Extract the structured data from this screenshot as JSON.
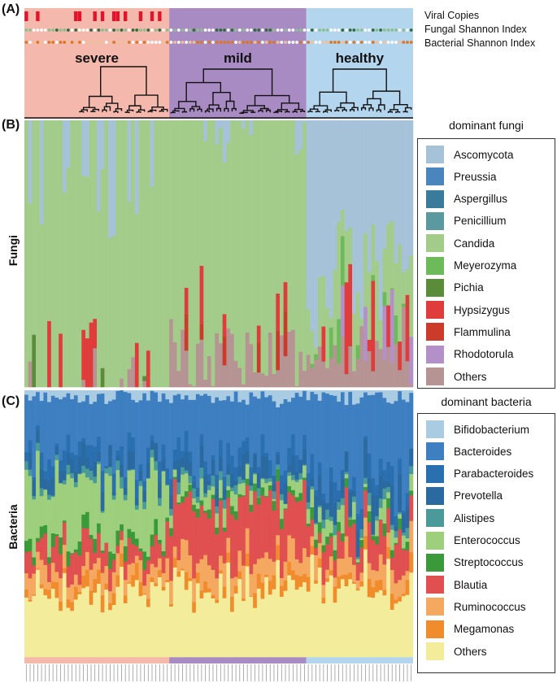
{
  "panels": {
    "a": "(A)",
    "b": "(B)",
    "c": "(C)"
  },
  "tracks": {
    "viral": "Viral Copies",
    "fungal": "Fungal Shannon Index",
    "bacterial": "Bacterial Shannon Index"
  },
  "y_labels": {
    "fungi": "Fungi",
    "bacteria": "Bacteria"
  },
  "groups": [
    {
      "name": "severe",
      "color": "#f4b8ad",
      "samples": 38
    },
    {
      "name": "mild",
      "color": "#a98bc4",
      "samples": 36
    },
    {
      "name": "healthy",
      "color": "#b3d5ee",
      "samples": 28
    }
  ],
  "legend_fungi": {
    "title": "dominant fungi",
    "items": [
      {
        "label": "Ascomycota",
        "color": "#a6c2d9"
      },
      {
        "label": "Preussia",
        "color": "#4a86bd"
      },
      {
        "label": "Aspergillus",
        "color": "#3a7a9a"
      },
      {
        "label": "Penicillium",
        "color": "#5a9a9e"
      },
      {
        "label": "Candida",
        "color": "#a3cc8a"
      },
      {
        "label": "Meyerozyma",
        "color": "#6dba5a"
      },
      {
        "label": "Pichia",
        "color": "#5a8c3a"
      },
      {
        "label": "Hypsizygus",
        "color": "#e03c3c"
      },
      {
        "label": "Flammulina",
        "color": "#cc3a2a"
      },
      {
        "label": "Rhodotorula",
        "color": "#b391c8"
      },
      {
        "label": "Others",
        "color": "#b69494"
      }
    ]
  },
  "legend_bacteria": {
    "title": "dominant bacteria",
    "items": [
      {
        "label": "Bifidobacterium",
        "color": "#a9cce3"
      },
      {
        "label": "Bacteroides",
        "color": "#3d7fc1"
      },
      {
        "label": "Parabacteroides",
        "color": "#2a6fb0"
      },
      {
        "label": "Prevotella",
        "color": "#2b6aa0"
      },
      {
        "label": "Alistipes",
        "color": "#4a9a9a"
      },
      {
        "label": "Enterococcus",
        "color": "#9dcf7c"
      },
      {
        "label": "Streptococcus",
        "color": "#3a9a3a"
      },
      {
        "label": "Blautia",
        "color": "#e05050"
      },
      {
        "label": "Ruminococcus",
        "color": "#f4a860"
      },
      {
        "label": "Megamonas",
        "color": "#f08c2c"
      },
      {
        "label": "Others",
        "color": "#f3ec9a"
      }
    ]
  },
  "chart_data": {
    "type": "bar",
    "title": "",
    "xlabel": "",
    "stacked": true,
    "normalized": true,
    "groups": [
      "severe",
      "mild",
      "healthy"
    ],
    "sample_counts": [
      38,
      36,
      28
    ],
    "sample_ids_note": "Per-sample x tick labels (Covi… IDs) are too small to read",
    "panels": [
      {
        "id": "A",
        "tracks": [
          "Viral Copies",
          "Fungal Shannon Index",
          "Bacterial Shannon Index"
        ],
        "has_dendrogram": true
      },
      {
        "id": "B",
        "ylabel": "Fungi",
        "series": [
          "Ascomycota",
          "Preussia",
          "Aspergillus",
          "Penicillium",
          "Candida",
          "Meyerozyma",
          "Pichia",
          "Hypsizygus",
          "Flammulina",
          "Rhodotorula",
          "Others"
        ],
        "dominant_by_group": {
          "severe": "Candida",
          "mild": "Candida",
          "healthy": "Ascomycota"
        }
      },
      {
        "id": "C",
        "ylabel": "Bacteria",
        "series": [
          "Bifidobacterium",
          "Bacteroides",
          "Parabacteroides",
          "Prevotella",
          "Alistipes",
          "Enterococcus",
          "Streptococcus",
          "Blautia",
          "Ruminococcus",
          "Megamonas",
          "Others"
        ],
        "dominant_by_group": {
          "severe": "Others",
          "mild": "Blautia",
          "healthy": "Bacteroides"
        }
      }
    ],
    "ylim": [
      0,
      1
    ]
  }
}
